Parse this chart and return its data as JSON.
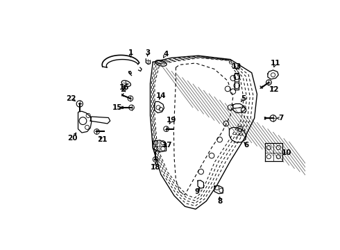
{
  "background_color": "#ffffff",
  "line_color": "#000000",
  "text_color": "#000000",
  "fig_width": 4.9,
  "fig_height": 3.6,
  "dpi": 100
}
